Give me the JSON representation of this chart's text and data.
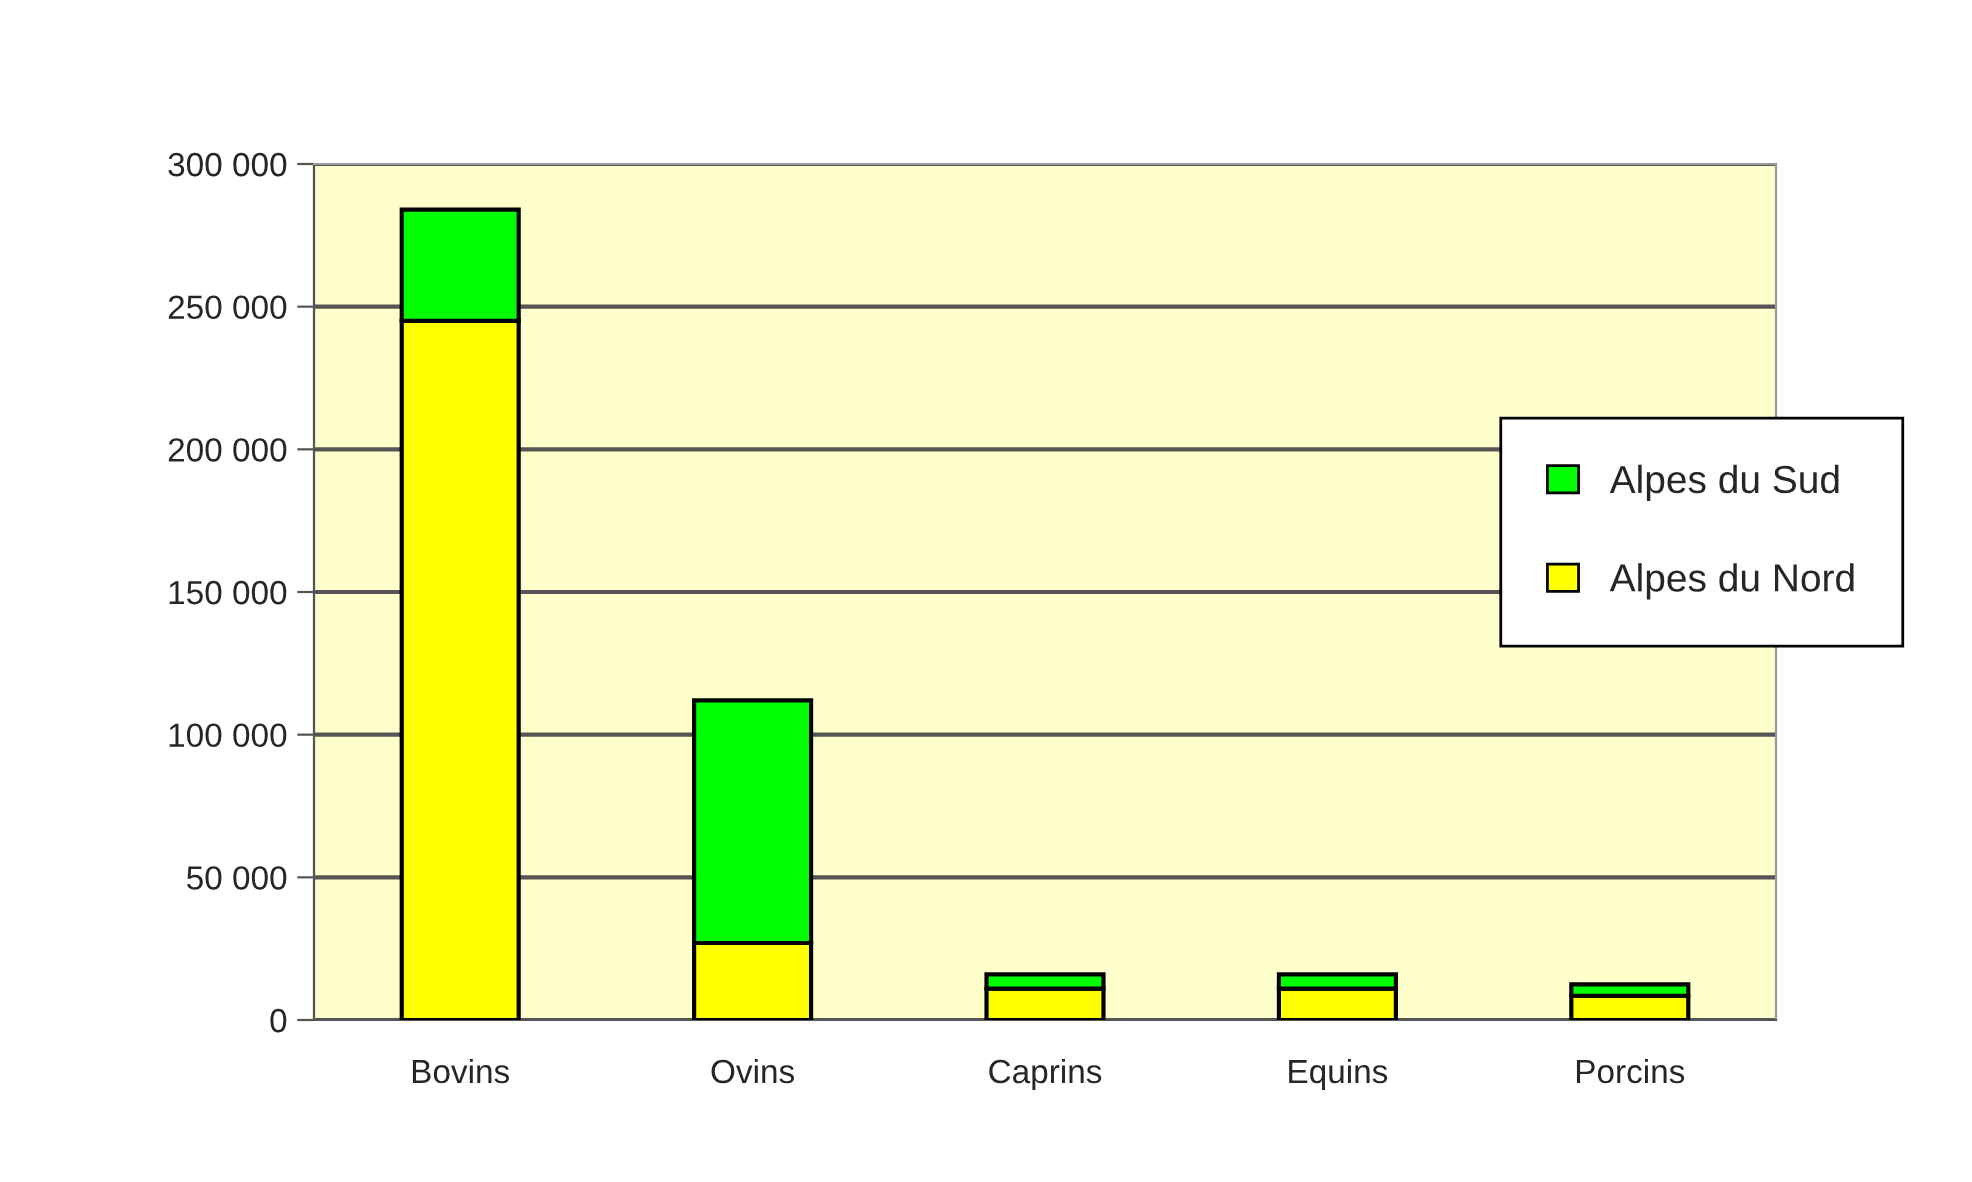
{
  "chart_data": {
    "type": "bar",
    "stacked": true,
    "categories": [
      "Bovins",
      "Ovins",
      "Caprins",
      "Equins",
      "Porcins"
    ],
    "series": [
      {
        "name": "Alpes du Nord",
        "color": "#ffff00",
        "values": [
          245000,
          27000,
          11000,
          11000,
          8500
        ]
      },
      {
        "name": "Alpes du Sud",
        "color": "#00ff00",
        "values": [
          39000,
          85000,
          5000,
          5000,
          4000
        ]
      }
    ],
    "ylim": [
      0,
      300000
    ],
    "yticks": [
      {
        "value": 0,
        "label": "0"
      },
      {
        "value": 50000,
        "label": "50 000"
      },
      {
        "value": 100000,
        "label": "100 000"
      },
      {
        "value": 150000,
        "label": "150 000"
      },
      {
        "value": 200000,
        "label": "200 000"
      },
      {
        "value": 250000,
        "label": "250 000"
      },
      {
        "value": 300000,
        "label": "300 000"
      }
    ],
    "grid": "y",
    "legend": "right"
  }
}
